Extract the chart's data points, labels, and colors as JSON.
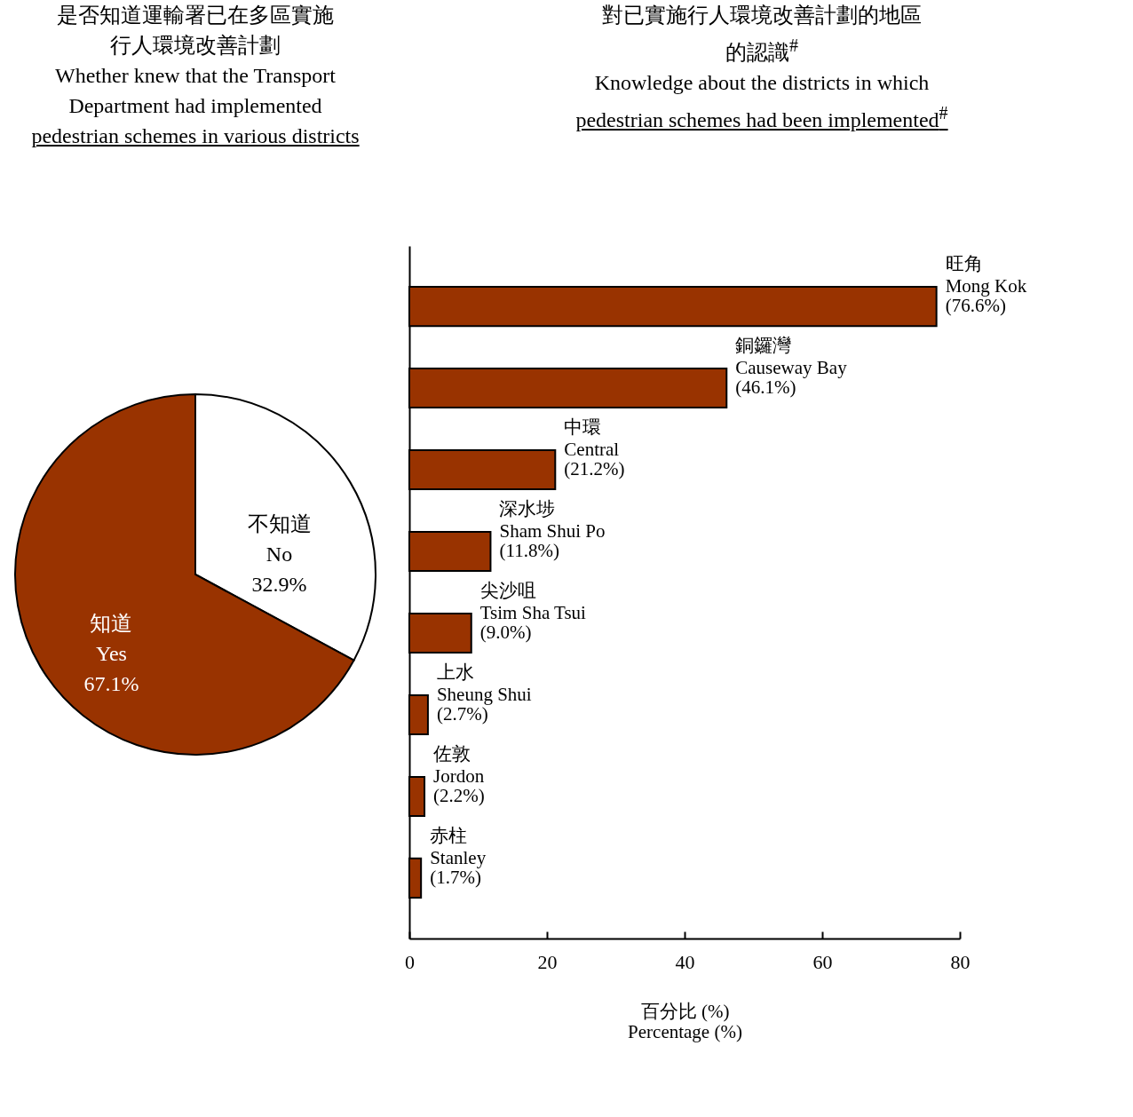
{
  "chart_data": [
    {
      "type": "pie",
      "title": "是否知道運輸署已在多區實施行人環境改善計劃\nWhether knew that the Transport\nDepartment had implemented\npedestrian schemes in various districts",
      "categories": [
        "不知道\nNo",
        "知道\nYes"
      ],
      "values": [
        32.9,
        67.1
      ],
      "value_labels": [
        "32.9%",
        "67.1%"
      ],
      "colors": [
        "#ffffff",
        "#993300"
      ],
      "legend": false
    },
    {
      "type": "bar",
      "orientation": "horizontal",
      "title": "對已實施行人環境改善計劃的地區的認識$^{#}$\nKnowledge about the districts in which\npedestrian schemes had been implemented$^{#}$",
      "categories": [
        "旺角\nMong Kok",
        "銅鑼灣\nCauseway Bay",
        "中環\nCentral",
        "深水埗\nSham Shui Po",
        "尖沙咀\nTsim Sha Tsui",
        "上水\nSheung Shui",
        "佐敦\nJordon",
        "赤柱\nStanley"
      ],
      "values": [
        76.6,
        46.1,
        21.2,
        11.8,
        9.0,
        2.7,
        2.2,
        1.7
      ],
      "value_labels": [
        "(76.6%)",
        "(46.1%)",
        "(21.2%)",
        "(11.8%)",
        "(9.0%)",
        "(2.7%)",
        "(2.2%)",
        "(1.7%)"
      ],
      "color": "#993300",
      "xlim": [
        0,
        80
      ],
      "xticks": [
        0,
        20,
        40,
        60,
        80
      ],
      "xlabel": "百分比 (%)\nPercentage (%)",
      "grid": false,
      "legend": false,
      "tick_labels": "x"
    }
  ]
}
